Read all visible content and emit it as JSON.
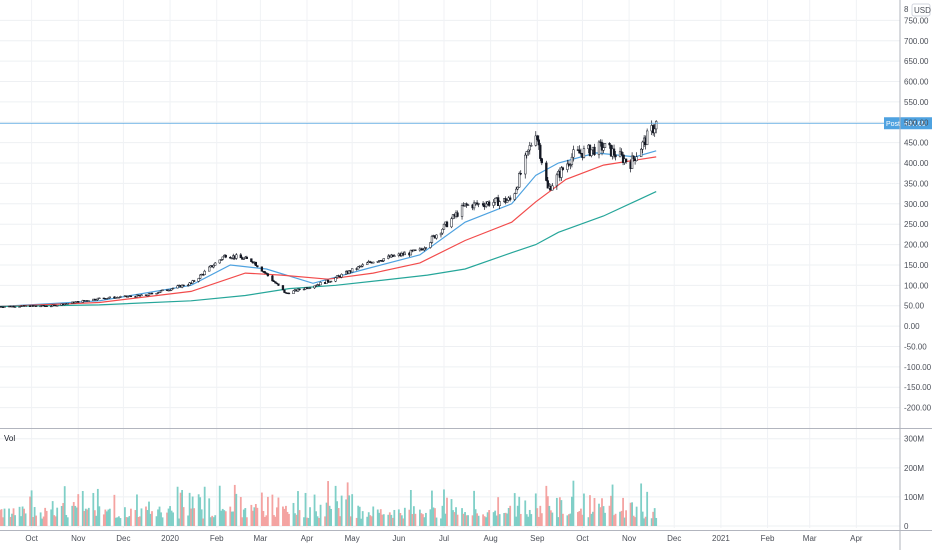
{
  "chart_data": {
    "type": "candlestick",
    "price_axis": {
      "unit": "USD",
      "ticks": [
        "750.00",
        "700.00",
        "650.00",
        "600.00",
        "550.00",
        "500.00",
        "450.00",
        "400.00",
        "350.00",
        "300.00",
        "250.00",
        "200.00",
        "150.00",
        "100.00",
        "50.00",
        "0.00",
        "-50.00",
        "-100.00",
        "-150.00",
        "-200.00"
      ],
      "range": [
        -250,
        800
      ],
      "top_clipped_label": "8"
    },
    "volume_axis": {
      "title": "Vol",
      "ticks": [
        "300M",
        "200M",
        "100M",
        "0"
      ],
      "range": [
        0,
        330
      ]
    },
    "time_axis": {
      "ticks": [
        "Oct",
        "Nov",
        "Dec",
        "2020",
        "Feb",
        "Mar",
        "Apr",
        "May",
        "Jun",
        "Jul",
        "Aug",
        "Sep",
        "Oct",
        "Nov",
        "Dec",
        "2021",
        "Feb",
        "Mar",
        "Apr"
      ],
      "range": [
        "2019-09-10",
        "2021-04-30"
      ]
    },
    "last_price": {
      "label": "Post",
      "value": "497.65"
    },
    "series_monthly_close": [
      {
        "date": "2019-09-10",
        "close": 48
      },
      {
        "date": "2019-10-15",
        "close": 50
      },
      {
        "date": "2019-11-15",
        "close": 68
      },
      {
        "date": "2019-12-15",
        "close": 75
      },
      {
        "date": "2020-01-15",
        "close": 105
      },
      {
        "date": "2020-02-07",
        "close": 175
      },
      {
        "date": "2020-02-25",
        "close": 160
      },
      {
        "date": "2020-03-18",
        "close": 80
      },
      {
        "date": "2020-04-15",
        "close": 110
      },
      {
        "date": "2020-05-15",
        "close": 160
      },
      {
        "date": "2020-06-15",
        "close": 185
      },
      {
        "date": "2020-07-15",
        "close": 295
      },
      {
        "date": "2020-08-15",
        "close": 310
      },
      {
        "date": "2020-08-31",
        "close": 480
      },
      {
        "date": "2020-09-08",
        "close": 335
      },
      {
        "date": "2020-09-25",
        "close": 420
      },
      {
        "date": "2020-10-15",
        "close": 440
      },
      {
        "date": "2020-11-02",
        "close": 400
      },
      {
        "date": "2020-11-19",
        "close": 497.65
      }
    ],
    "moving_averages": [
      {
        "color": "#4ea2e0",
        "points": [
          [
            "2019-09-10",
            48
          ],
          [
            "2019-11-15",
            62
          ],
          [
            "2020-01-15",
            100
          ],
          [
            "2020-02-10",
            150
          ],
          [
            "2020-03-05",
            140
          ],
          [
            "2020-04-05",
            105
          ],
          [
            "2020-05-10",
            140
          ],
          [
            "2020-06-15",
            175
          ],
          [
            "2020-07-15",
            255
          ],
          [
            "2020-08-15",
            300
          ],
          [
            "2020-08-31",
            370
          ],
          [
            "2020-09-15",
            400
          ],
          [
            "2020-10-10",
            425
          ],
          [
            "2020-11-05",
            415
          ],
          [
            "2020-11-19",
            430
          ]
        ]
      },
      {
        "color": "#f24c4c",
        "points": [
          [
            "2019-09-10",
            48
          ],
          [
            "2019-11-15",
            58
          ],
          [
            "2020-01-15",
            85
          ],
          [
            "2020-02-20",
            130
          ],
          [
            "2020-03-15",
            125
          ],
          [
            "2020-04-15",
            115
          ],
          [
            "2020-05-15",
            130
          ],
          [
            "2020-06-15",
            155
          ],
          [
            "2020-07-15",
            210
          ],
          [
            "2020-08-15",
            255
          ],
          [
            "2020-08-31",
            305
          ],
          [
            "2020-09-20",
            360
          ],
          [
            "2020-10-15",
            395
          ],
          [
            "2020-11-19",
            415
          ]
        ]
      },
      {
        "color": "#26a69a",
        "points": [
          [
            "2019-09-10",
            48
          ],
          [
            "2019-11-15",
            52
          ],
          [
            "2020-01-15",
            62
          ],
          [
            "2020-02-20",
            75
          ],
          [
            "2020-03-20",
            92
          ],
          [
            "2020-04-20",
            100
          ],
          [
            "2020-05-20",
            112
          ],
          [
            "2020-06-20",
            125
          ],
          [
            "2020-07-15",
            140
          ],
          [
            "2020-08-15",
            180
          ],
          [
            "2020-08-31",
            200
          ],
          [
            "2020-09-15",
            230
          ],
          [
            "2020-10-15",
            270
          ],
          [
            "2020-11-19",
            330
          ]
        ]
      }
    ],
    "colors": {
      "up": "#26a69a",
      "down": "#ef5350",
      "candle": "#131722",
      "price_line": "#4ea2e0"
    }
  }
}
